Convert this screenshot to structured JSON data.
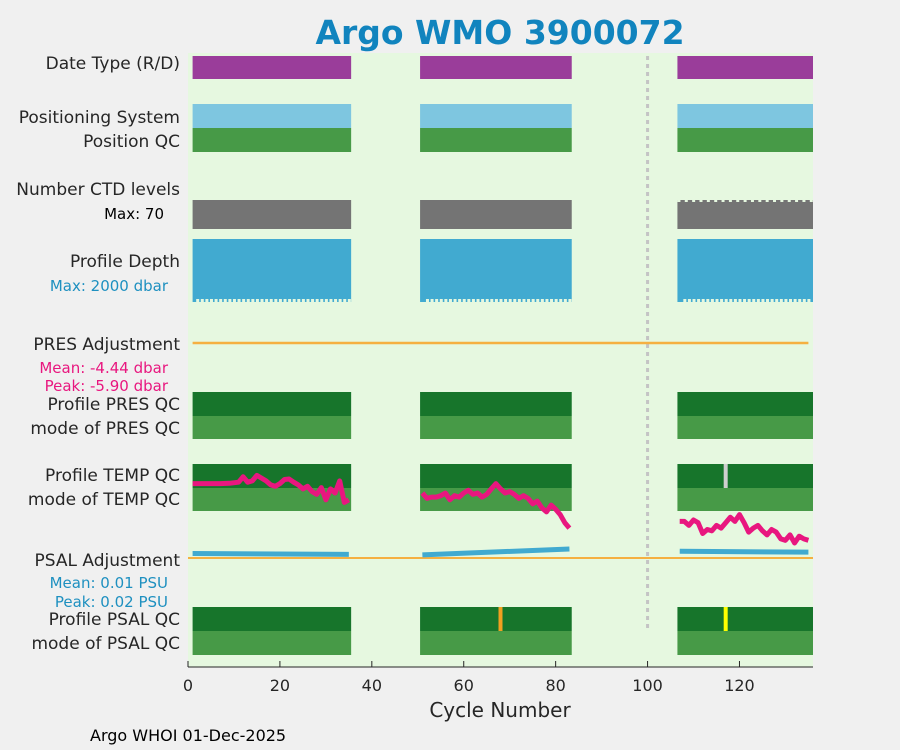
{
  "chart_data": {
    "type": "timeline",
    "title": "Argo WMO 3900072",
    "xlabel": "Cycle Number",
    "xlim": [
      0,
      136
    ],
    "xticks": [
      0,
      20,
      40,
      60,
      80,
      100,
      120
    ],
    "footer": "Argo WHOI 01-Dec-2025",
    "cycle_segments": [
      [
        1,
        35.5
      ],
      [
        50.5,
        83.5
      ],
      [
        106.5,
        136
      ]
    ],
    "reference_line_cycle": 100,
    "rows": [
      {
        "id": "date-type",
        "label": "Date Type (R/D)",
        "color": "#9a3d9a"
      },
      {
        "id": "positioning-system",
        "label": "Positioning System",
        "color": "#7ec6e0"
      },
      {
        "id": "position-qc",
        "label": "Position QC",
        "color": "#479a47"
      },
      {
        "id": "number-ctd-levels",
        "label": "Number CTD levels",
        "color": "#747474",
        "note": "Max: 70"
      },
      {
        "id": "profile-depth",
        "label": "Profile Depth",
        "color": "#41aad0",
        "note": "Max: 2000 dbar"
      },
      {
        "id": "pres-adjustment",
        "label": "PRES Adjustment",
        "notes": [
          "Mean: -4.44 dbar",
          "Peak: -5.90 dbar"
        ]
      },
      {
        "id": "profile-pres-qc",
        "label": "Profile PRES QC",
        "color": "#17752b"
      },
      {
        "id": "mode-pres-qc",
        "label": "mode of PRES QC",
        "color": "#479a47"
      },
      {
        "id": "profile-temp-qc",
        "label": "Profile TEMP QC",
        "color": "#17752b"
      },
      {
        "id": "mode-temp-qc",
        "label": "mode of TEMP QC",
        "color": "#479a47"
      },
      {
        "id": "psal-adjustment",
        "label": "PSAL Adjustment",
        "notes": [
          "Mean: 0.01 PSU",
          "Peak: 0.02 PSU"
        ]
      },
      {
        "id": "profile-psal-qc",
        "label": "Profile PSAL QC",
        "color": "#17752b"
      },
      {
        "id": "mode-psal-qc",
        "label": "mode of PSAL QC",
        "color": "#479a47"
      }
    ],
    "qc_flags": [
      {
        "row": "profile-temp-qc",
        "cycle": 117,
        "color": "#cfcfcf"
      },
      {
        "row": "profile-psal-qc",
        "cycle": 68,
        "color": "#f2a020"
      },
      {
        "row": "profile-psal-qc",
        "cycle": 117,
        "color": "#ffff00"
      }
    ],
    "temp_trace": {
      "color": "#e8177f",
      "x": [
        1,
        3,
        5,
        7,
        9,
        11,
        12,
        13,
        14,
        15,
        16,
        17,
        18,
        19,
        20,
        21,
        22,
        23,
        24,
        25,
        26,
        27,
        28,
        29,
        30,
        31,
        32,
        33,
        34,
        35,
        51,
        52,
        53,
        54,
        55,
        56,
        57,
        58,
        59,
        60,
        61,
        62,
        63,
        64,
        65,
        66,
        67,
        68,
        69,
        70,
        71,
        72,
        73,
        74,
        75,
        76,
        77,
        78,
        79,
        80,
        81,
        82,
        83,
        107,
        108,
        109,
        110,
        111,
        112,
        113,
        114,
        115,
        116,
        117,
        118,
        119,
        120,
        121,
        122,
        123,
        124,
        125,
        126,
        127,
        128,
        129,
        130,
        131,
        132,
        133,
        134,
        135
      ],
      "y": [
        0.65,
        0.65,
        0.65,
        0.65,
        0.64,
        0.6,
        0.4,
        0.6,
        0.55,
        0.35,
        0.45,
        0.55,
        0.7,
        0.75,
        0.65,
        0.5,
        0.48,
        0.6,
        0.7,
        0.85,
        0.75,
        0.95,
        1.05,
        0.8,
        1.25,
        0.85,
        1.0,
        0.55,
        1.35,
        1.25,
        1.0,
        1.2,
        1.15,
        1.15,
        1.1,
        1.0,
        1.25,
        1.1,
        1.15,
        1.0,
        0.9,
        1.05,
        1.0,
        1.15,
        1.05,
        0.85,
        0.65,
        0.85,
        1.0,
        0.95,
        1.05,
        1.2,
        1.1,
        1.2,
        1.4,
        1.3,
        1.55,
        1.7,
        1.45,
        1.6,
        1.8,
        2.1,
        2.3,
        2.05,
        2.05,
        2.2,
        2.0,
        2.1,
        2.5,
        2.35,
        2.4,
        2.2,
        2.3,
        2.1,
        1.9,
        2.05,
        1.8,
        2.1,
        2.45,
        2.3,
        2.2,
        2.4,
        2.55,
        2.35,
        2.45,
        2.7,
        2.75,
        2.55,
        2.85,
        2.6,
        2.7,
        2.75
      ]
    },
    "psal_adjustment_series": [
      {
        "x": [
          1,
          35
        ],
        "psu": [
          0.01,
          0.008
        ]
      },
      {
        "x": [
          51,
          83
        ],
        "psu": [
          0.007,
          0.02
        ]
      },
      {
        "x": [
          107,
          135
        ],
        "psu": [
          0.015,
          0.013
        ]
      }
    ],
    "pres_adjustment_level_note": "flat line"
  },
  "colors": {
    "plot_bg": "#e6f8e0",
    "title": "#1184be",
    "orange_line": "#f5b041",
    "psal_line": "#41aad0",
    "note_blue": "#1e90c0",
    "note_pink": "#e8177f"
  }
}
